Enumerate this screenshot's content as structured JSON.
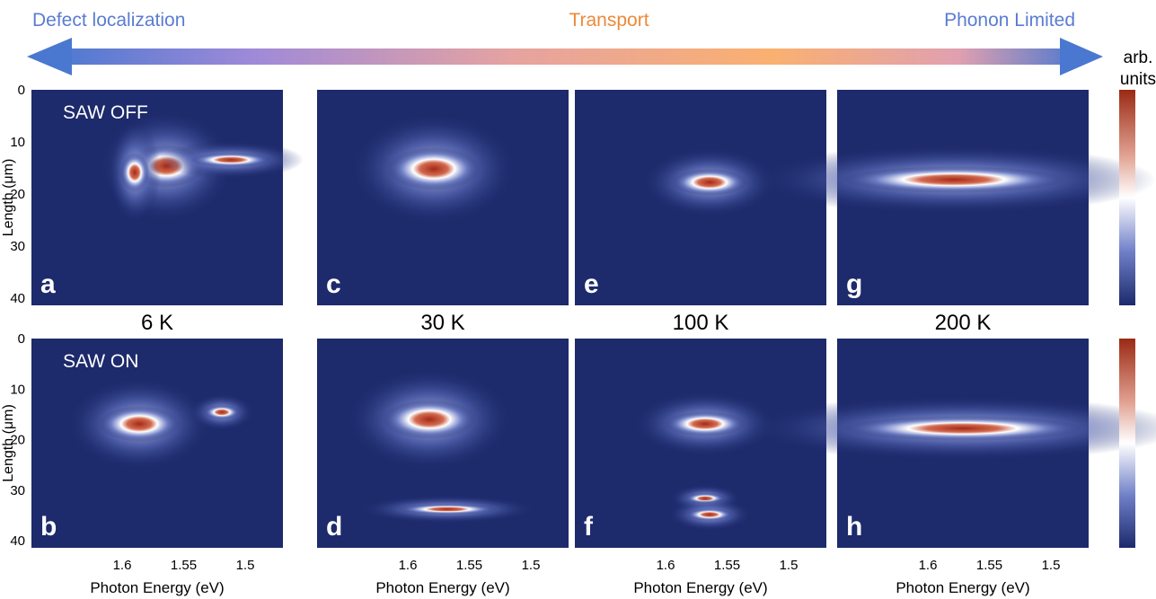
{
  "header": {
    "left": "Defect localization",
    "center": "Transport",
    "right": "Phonon Limited"
  },
  "colorbar_label": {
    "line1": "arb.",
    "line2": "units"
  },
  "rows": [
    {
      "label": "SAW OFF",
      "panels": [
        "a",
        "c",
        "e",
        "g"
      ]
    },
    {
      "label": "SAW ON",
      "panels": [
        "b",
        "d",
        "f",
        "h"
      ]
    }
  ],
  "temperatures": [
    "6 K",
    "30 K",
    "100 K",
    "200 K"
  ],
  "y_axis": {
    "label": "Length (μm)",
    "ticks": [
      0,
      10,
      20,
      30,
      40
    ]
  },
  "x_axis": {
    "label": "Photon Energy (eV)",
    "ticks": [
      1.6,
      1.55,
      1.5
    ]
  }
}
